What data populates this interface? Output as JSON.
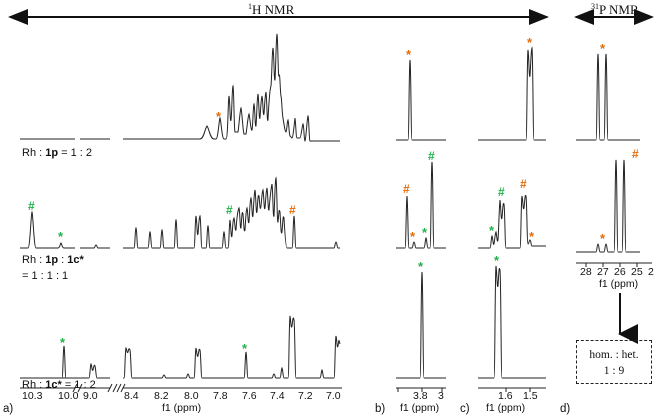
{
  "headers": {
    "h_nmr": {
      "sup": "1",
      "text": "H NMR"
    },
    "p_nmr": {
      "sup": "31",
      "text": "P NMR"
    }
  },
  "ratio_labels": {
    "top": {
      "pre": "Rh : ",
      "bold": "1p",
      "post": " = 1 : 2"
    },
    "middle": {
      "pre": "Rh : ",
      "bold1": "1p",
      "mid": " : ",
      "bold2": "1c*",
      "line2": "= 1 : 1 : 1"
    },
    "bottom": {
      "pre": "Rh : ",
      "bold": "1c*",
      "post": " = 1 : 2"
    }
  },
  "panel_a": {
    "ticks": [
      "10.3",
      "10.0",
      "9.0",
      "8.4",
      "8.2",
      "8.0",
      "7.8",
      "7.6",
      "7.4",
      "7.2",
      "7.0"
    ],
    "xlabel": "f1 (ppm)",
    "panel_label": "a)"
  },
  "panel_b": {
    "ticks": [
      "3.8",
      "3"
    ],
    "xlabel": "f1 (ppm)",
    "panel_label": "b)"
  },
  "panel_c": {
    "ticks": [
      "1.6",
      "1.5"
    ],
    "xlabel": "f1 (ppm)",
    "panel_label": "c)"
  },
  "panel_d": {
    "ticks": [
      "28",
      "27",
      "26",
      "25",
      "2"
    ],
    "xlabel": "f1 (ppm)",
    "panel_label": "d)"
  },
  "result_box": {
    "line1": "hom. : het.",
    "line2": "1 : 9"
  },
  "markers": {
    "star": "*",
    "hash": "#"
  },
  "colors": {
    "star": "#e36c0a",
    "hash_orange": "#e36c0a",
    "hash_green": "#22b14c",
    "star_green": "#22b14c",
    "spectrum": "#222222"
  }
}
